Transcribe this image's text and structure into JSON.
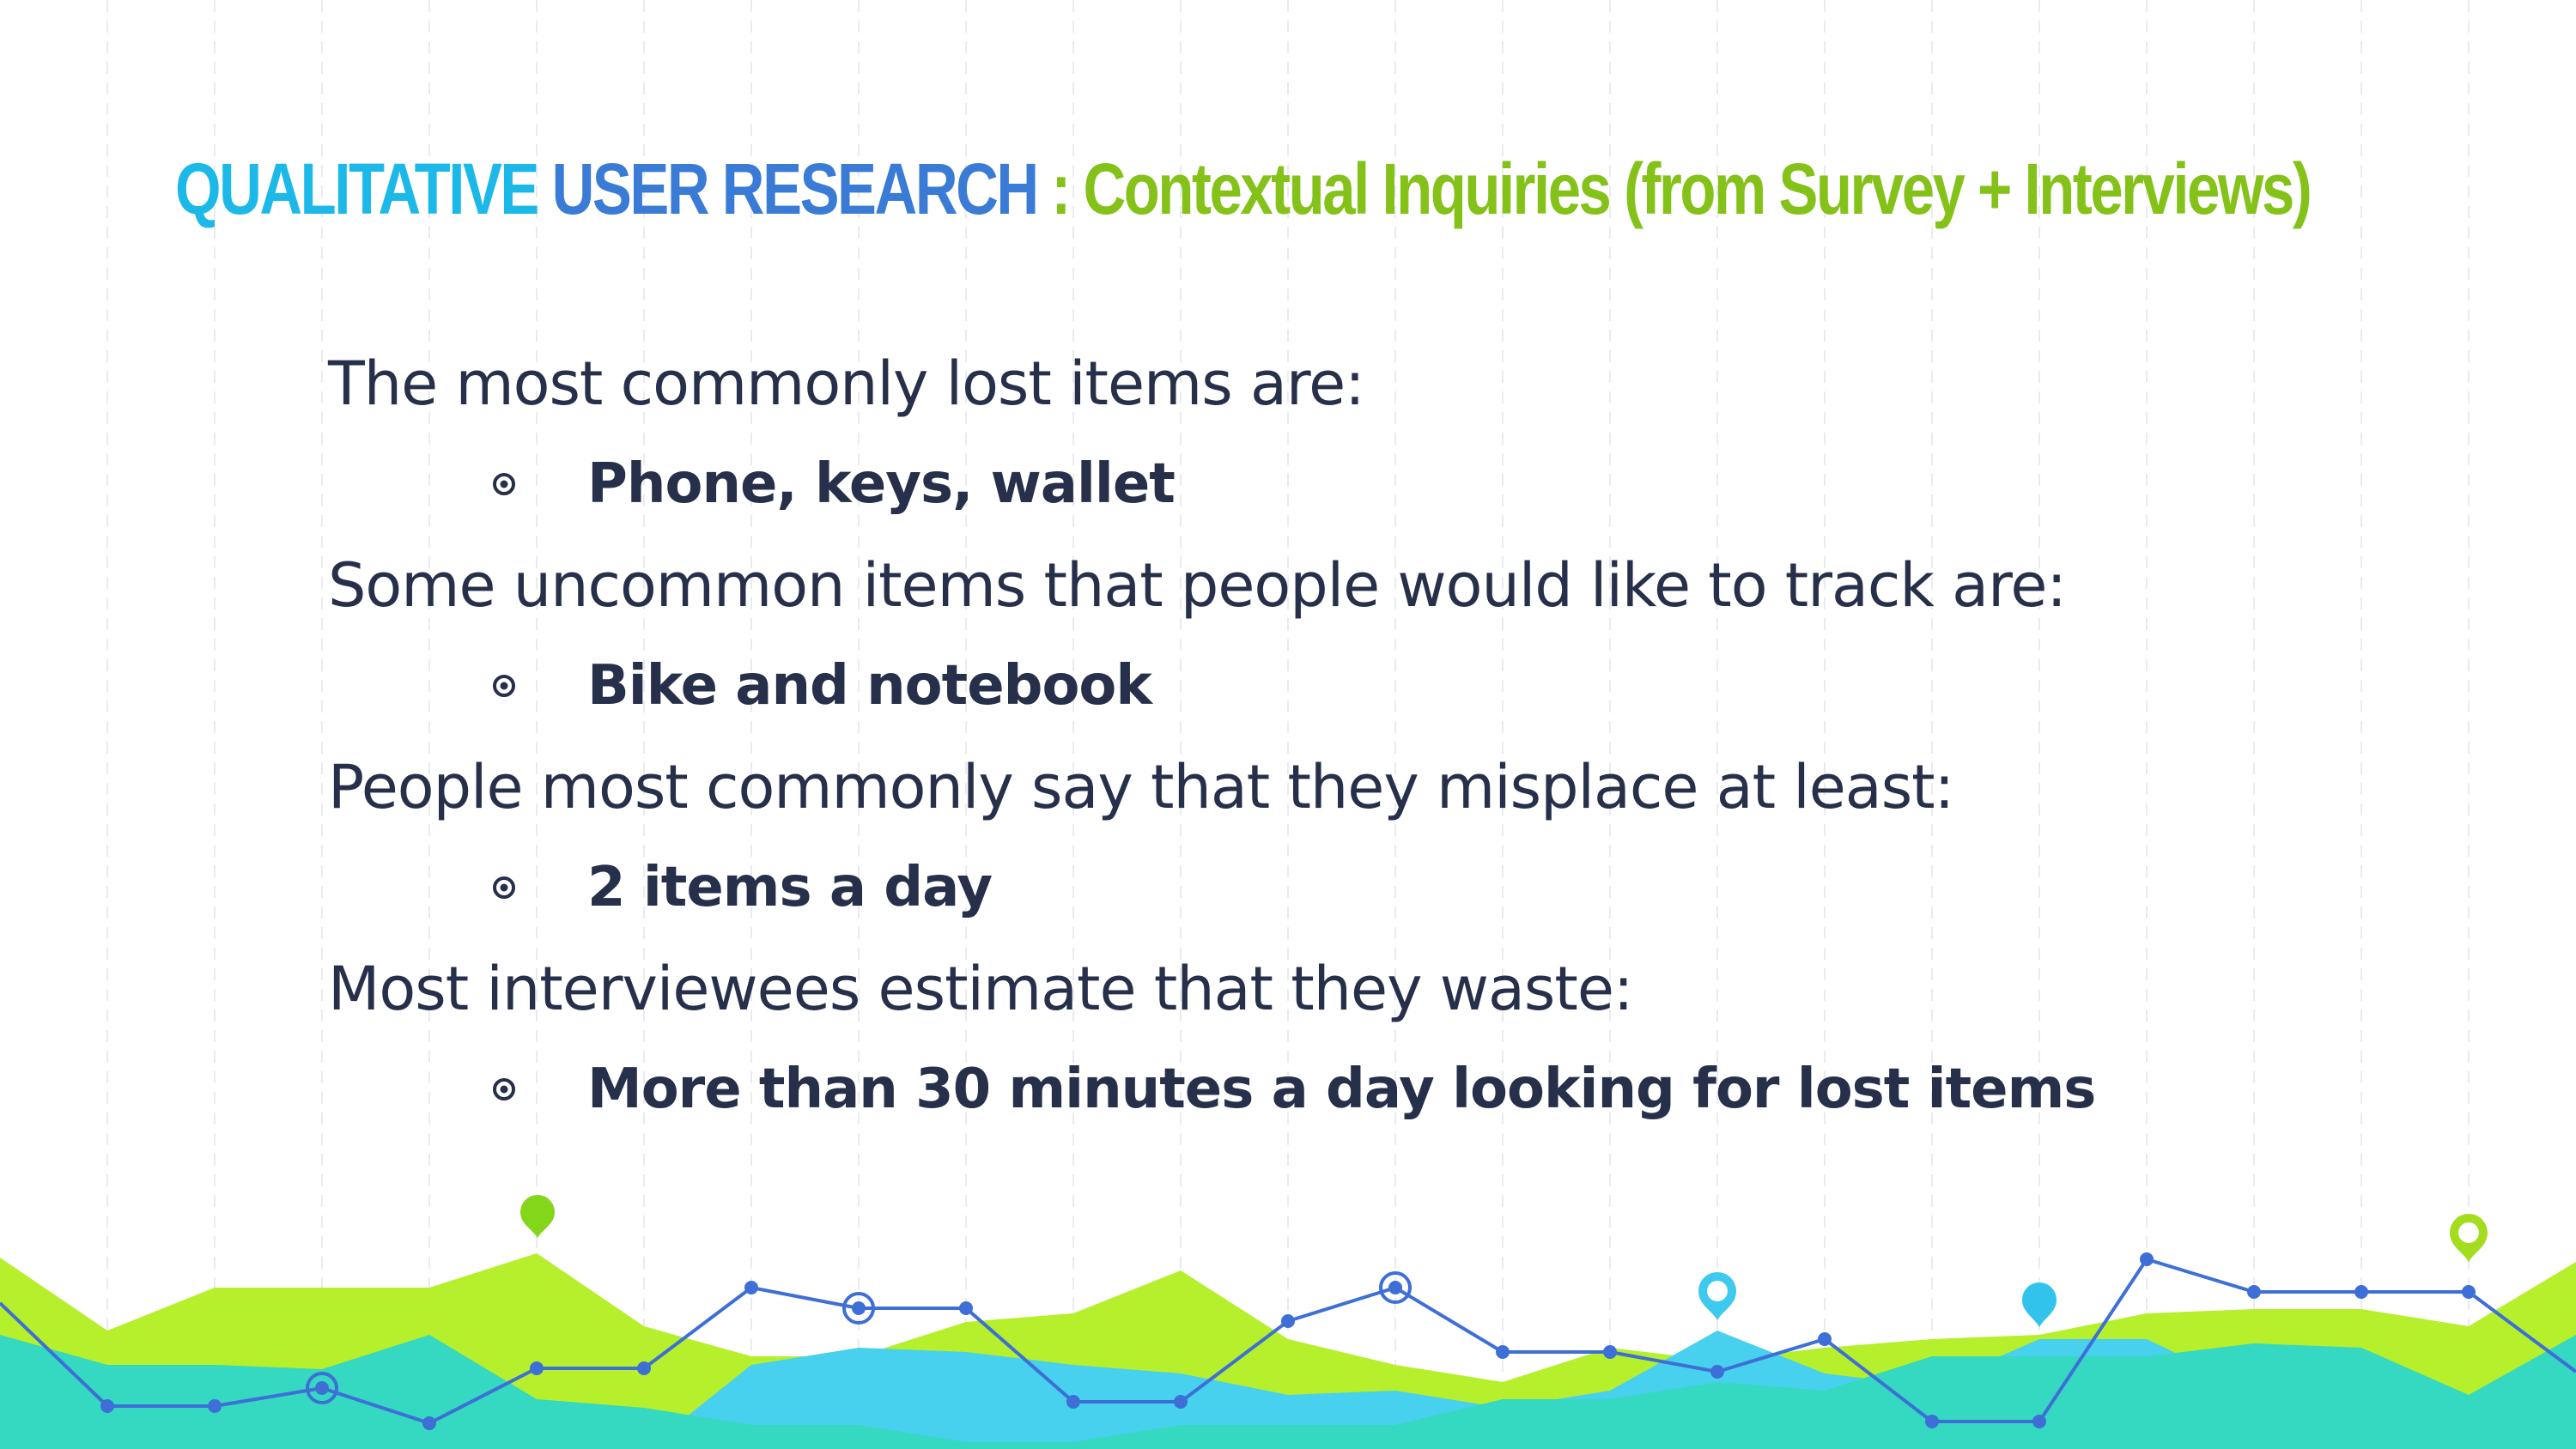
{
  "title": {
    "part1": "QUALITATIVE",
    "part2": "USER RESEARCH",
    "separator": " : ",
    "part3": "Contextual Inquiries (from Survey + Interviews)"
  },
  "colors": {
    "title_cyan": "#1cb9e8",
    "title_blue": "#3a7bd5",
    "title_green": "#84c21a",
    "text": "#27304a",
    "wave_lime": "#b6ef2b",
    "wave_teal": "#35d8c0",
    "wave_sky": "#48d0ef",
    "line_blue": "#3d6fd6"
  },
  "sections": [
    {
      "intro": "The most commonly lost items are:",
      "bullet": "Phone, keys, wallet"
    },
    {
      "intro": "Some uncommon items that people would like to track are:",
      "bullet": "Bike and notebook"
    },
    {
      "intro": "People most commonly say that they misplace at least:",
      "bullet": "2 items a day"
    },
    {
      "intro": "Most interviewees estimate that they waste:",
      "bullet": "More than 30 minutes a day looking for lost items"
    }
  ],
  "icons": [
    "target-bullet-icon",
    "map-pin-icon",
    "chart-point-icon"
  ]
}
